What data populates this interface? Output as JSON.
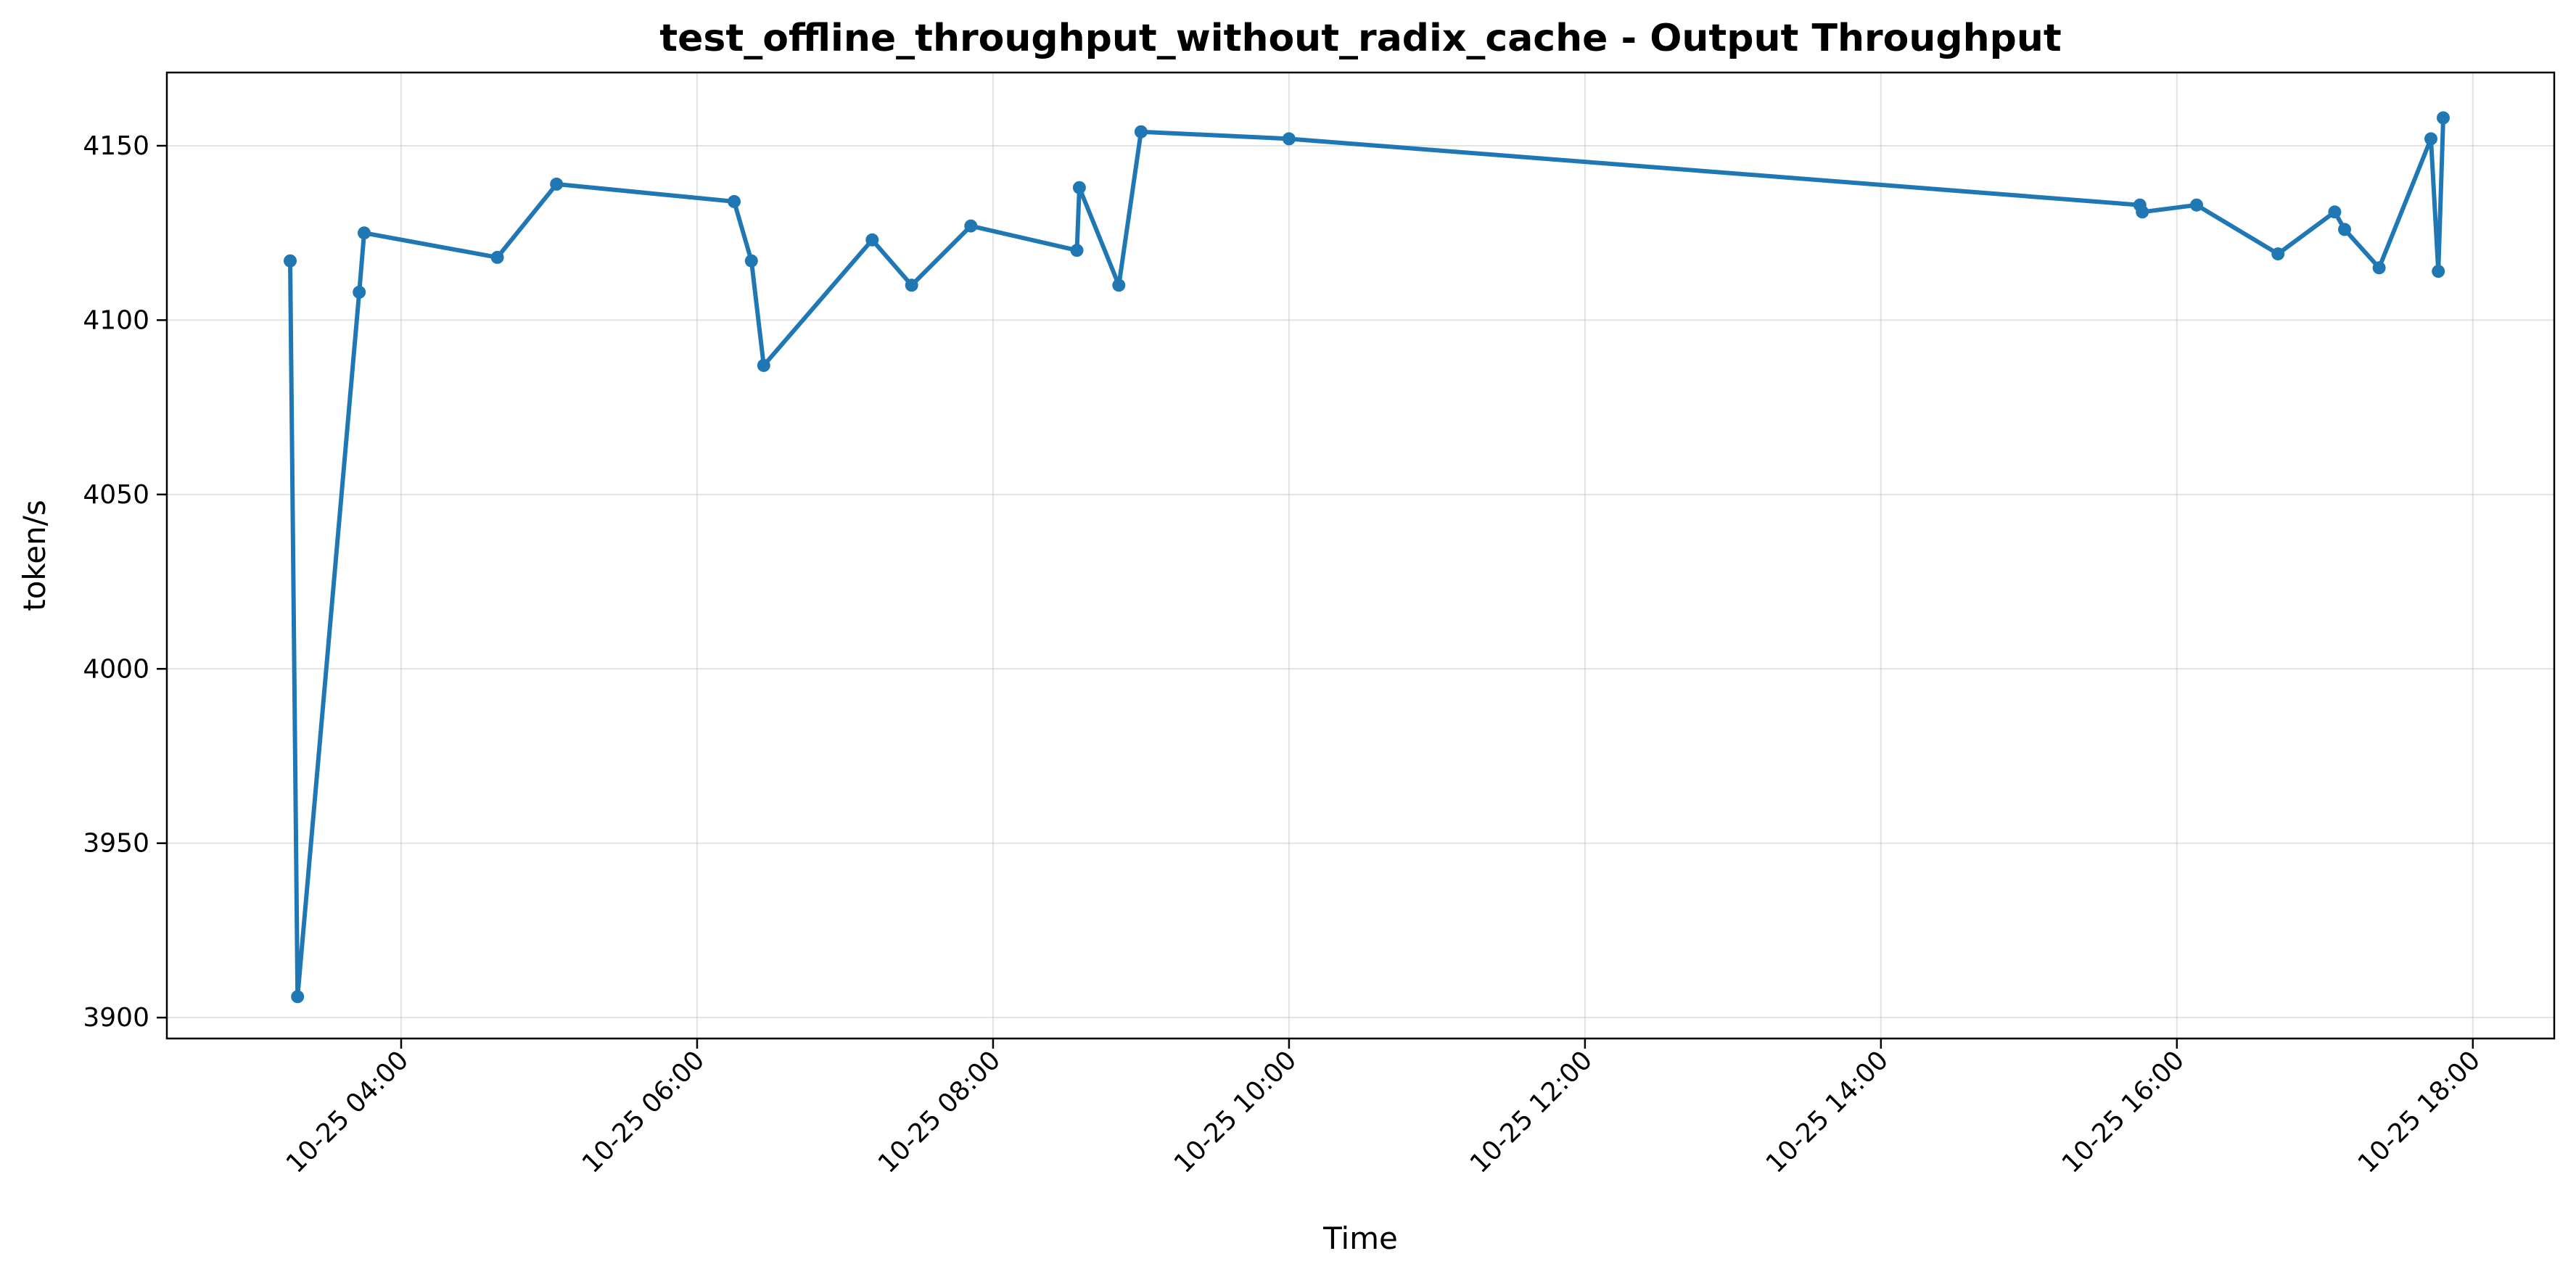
{
  "chart_data": {
    "type": "line",
    "title": "test_offline_throughput_without_radix_cache - Output Throughput",
    "xlabel": "Time",
    "ylabel": "token/s",
    "x_ticks": [
      "10-25 04:00",
      "10-25 06:00",
      "10-25 08:00",
      "10-25 10:00",
      "10-25 12:00",
      "10-25 14:00",
      "10-25 16:00",
      "10-25 18:00"
    ],
    "y_ticks": [
      "3900",
      "3950",
      "4000",
      "4050",
      "4100",
      "4150"
    ],
    "xlim": [
      "10-25 02:25",
      "10-25 18:33"
    ],
    "ylim": [
      3894,
      4171
    ],
    "grid": true,
    "color": "#1f77b4",
    "series": [
      {
        "x": [
          "10-25 03:15",
          "10-25 03:18",
          "10-25 03:43",
          "10-25 03:45",
          "10-25 04:39",
          "10-25 05:03",
          "10-25 06:15",
          "10-25 06:22",
          "10-25 06:27",
          "10-25 07:11",
          "10-25 07:27",
          "10-25 07:51",
          "10-25 08:34",
          "10-25 08:35",
          "10-25 08:51",
          "10-25 09:00",
          "10-25 10:00",
          "10-25 15:45",
          "10-25 15:46",
          "10-25 16:08",
          "10-25 16:41",
          "10-25 17:04",
          "10-25 17:08",
          "10-25 17:22",
          "10-25 17:43",
          "10-25 17:46",
          "10-25 17:48"
        ],
        "y": [
          4117,
          3906,
          4108,
          4125,
          4118,
          4139,
          4134,
          4117,
          4087,
          4123,
          4110,
          4127,
          4120,
          4138,
          4110,
          4154,
          4152,
          4133,
          4131,
          4133,
          4119,
          4131,
          4126,
          4115,
          4152,
          4114,
          4158
        ]
      }
    ]
  }
}
